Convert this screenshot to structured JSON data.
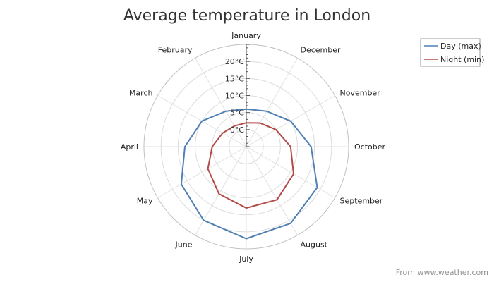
{
  "chart_data": {
    "type": "radar",
    "title": "Average temperature in London",
    "categories": [
      "January",
      "February",
      "March",
      "April",
      "May",
      "June",
      "July",
      "August",
      "September",
      "October",
      "November",
      "December"
    ],
    "radial_ticks": [
      "0°C",
      "5°C",
      "10°C",
      "15°C",
      "20°C"
    ],
    "rlim": [
      -5,
      25
    ],
    "series": [
      {
        "name": "Day (max)",
        "color": "#4f7fb3",
        "values": [
          6,
          7,
          10,
          13,
          17,
          20,
          22,
          21,
          19,
          14,
          10,
          7
        ]
      },
      {
        "name": "Night (min)",
        "color": "#b24b47",
        "values": [
          2,
          2,
          3,
          5,
          8,
          11,
          13,
          13,
          11,
          8,
          5,
          3
        ]
      }
    ],
    "grid": true,
    "legend_position": "top-right"
  },
  "source": "From www.weather.com"
}
